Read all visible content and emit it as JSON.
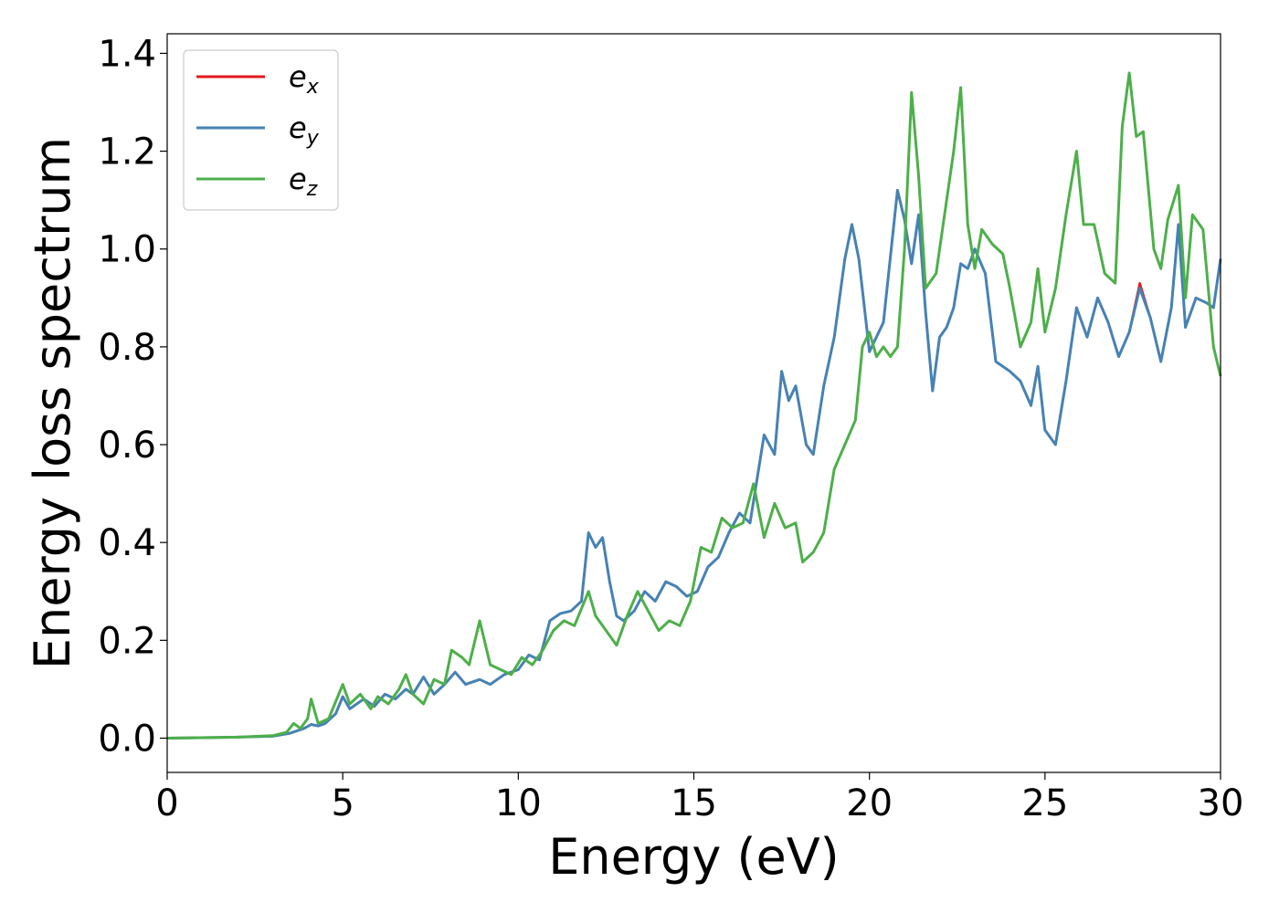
{
  "chart_data": {
    "type": "line",
    "title": "",
    "xlabel": "Energy (eV)",
    "ylabel": "Energy loss spectrum",
    "xlim": [
      0,
      30
    ],
    "ylim": [
      -0.07,
      1.44
    ],
    "xticks": [
      0,
      5,
      10,
      15,
      20,
      25,
      30
    ],
    "yticks": [
      0.0,
      0.2,
      0.4,
      0.6,
      0.8,
      1.0,
      1.2,
      1.4
    ],
    "xtick_labels": [
      "0",
      "5",
      "10",
      "15",
      "20",
      "25",
      "30"
    ],
    "ytick_labels": [
      "0.0",
      "0.2",
      "0.4",
      "0.6",
      "0.8",
      "1.0",
      "1.2",
      "1.4"
    ],
    "grid": false,
    "legend_position": "top-left",
    "series": [
      {
        "name": "e",
        "subscript": "x",
        "color": "#e41a1c",
        "width": 2.5,
        "x": [
          0,
          2,
          3,
          3.5,
          3.9,
          4.1,
          4.3,
          4.5,
          4.8,
          5.0,
          5.2,
          5.4,
          5.6,
          5.9,
          6.2,
          6.5,
          6.8,
          7.0,
          7.3,
          7.6,
          7.9,
          8.2,
          8.5,
          8.9,
          9.2,
          9.6,
          10.0,
          10.3,
          10.6,
          10.9,
          11.2,
          11.5,
          11.8,
          12.0,
          12.2,
          12.4,
          12.6,
          12.8,
          13.0,
          13.3,
          13.6,
          13.9,
          14.2,
          14.5,
          14.8,
          15.1,
          15.4,
          15.7,
          16.0,
          16.3,
          16.6,
          17.0,
          17.3,
          17.5,
          17.7,
          17.9,
          18.2,
          18.4,
          18.7,
          19.0,
          19.3,
          19.5,
          19.7,
          20.0,
          20.4,
          20.8,
          21.0,
          21.2,
          21.4,
          21.6,
          21.8,
          22.0,
          22.2,
          22.4,
          22.6,
          22.8,
          23.0,
          23.3,
          23.6,
          24.0,
          24.3,
          24.6,
          24.8,
          25.0,
          25.3,
          25.6,
          25.9,
          26.2,
          26.5,
          26.8,
          27.1,
          27.4,
          27.7,
          28.0,
          28.3,
          28.6,
          28.8,
          29.0,
          29.3,
          29.6,
          29.8,
          30.0
        ],
        "y": [
          0.0,
          0.002,
          0.004,
          0.01,
          0.02,
          0.028,
          0.025,
          0.03,
          0.05,
          0.085,
          0.06,
          0.07,
          0.08,
          0.065,
          0.09,
          0.08,
          0.1,
          0.09,
          0.125,
          0.09,
          0.11,
          0.135,
          0.11,
          0.12,
          0.11,
          0.13,
          0.14,
          0.17,
          0.16,
          0.24,
          0.255,
          0.26,
          0.28,
          0.42,
          0.39,
          0.41,
          0.32,
          0.25,
          0.24,
          0.26,
          0.3,
          0.28,
          0.32,
          0.31,
          0.29,
          0.3,
          0.35,
          0.37,
          0.42,
          0.46,
          0.44,
          0.62,
          0.58,
          0.75,
          0.69,
          0.72,
          0.6,
          0.58,
          0.72,
          0.82,
          0.98,
          1.05,
          0.98,
          0.79,
          0.85,
          1.12,
          1.06,
          0.97,
          1.07,
          0.87,
          0.71,
          0.82,
          0.84,
          0.88,
          0.97,
          0.96,
          1.0,
          0.95,
          0.77,
          0.75,
          0.73,
          0.68,
          0.76,
          0.63,
          0.6,
          0.73,
          0.88,
          0.82,
          0.9,
          0.85,
          0.78,
          0.83,
          0.93,
          0.86,
          0.77,
          0.88,
          1.05,
          0.84,
          0.9,
          0.89,
          0.88,
          0.98
        ]
      },
      {
        "name": "e",
        "subscript": "y",
        "color": "#4682b4",
        "width": 3,
        "x": [
          0,
          2,
          3,
          3.5,
          3.9,
          4.1,
          4.3,
          4.5,
          4.8,
          5.0,
          5.2,
          5.4,
          5.6,
          5.9,
          6.2,
          6.5,
          6.8,
          7.0,
          7.3,
          7.6,
          7.9,
          8.2,
          8.5,
          8.9,
          9.2,
          9.6,
          10.0,
          10.3,
          10.6,
          10.9,
          11.2,
          11.5,
          11.8,
          12.0,
          12.2,
          12.4,
          12.6,
          12.8,
          13.0,
          13.3,
          13.6,
          13.9,
          14.2,
          14.5,
          14.8,
          15.1,
          15.4,
          15.7,
          16.0,
          16.3,
          16.6,
          17.0,
          17.3,
          17.5,
          17.7,
          17.9,
          18.2,
          18.4,
          18.7,
          19.0,
          19.3,
          19.5,
          19.7,
          20.0,
          20.4,
          20.8,
          21.0,
          21.2,
          21.4,
          21.6,
          21.8,
          22.0,
          22.2,
          22.4,
          22.6,
          22.8,
          23.0,
          23.3,
          23.6,
          24.0,
          24.3,
          24.6,
          24.8,
          25.0,
          25.3,
          25.6,
          25.9,
          26.2,
          26.5,
          26.8,
          27.1,
          27.4,
          27.7,
          28.0,
          28.3,
          28.6,
          28.8,
          29.0,
          29.3,
          29.6,
          29.8,
          30.0
        ],
        "y": [
          0.0,
          0.002,
          0.004,
          0.01,
          0.02,
          0.028,
          0.025,
          0.03,
          0.05,
          0.085,
          0.06,
          0.07,
          0.08,
          0.065,
          0.09,
          0.08,
          0.1,
          0.09,
          0.125,
          0.09,
          0.11,
          0.135,
          0.11,
          0.12,
          0.11,
          0.13,
          0.14,
          0.17,
          0.16,
          0.24,
          0.255,
          0.26,
          0.28,
          0.42,
          0.39,
          0.41,
          0.32,
          0.25,
          0.24,
          0.26,
          0.3,
          0.28,
          0.32,
          0.31,
          0.29,
          0.3,
          0.35,
          0.37,
          0.42,
          0.46,
          0.44,
          0.62,
          0.58,
          0.75,
          0.69,
          0.72,
          0.6,
          0.58,
          0.72,
          0.82,
          0.98,
          1.05,
          0.98,
          0.79,
          0.85,
          1.12,
          1.06,
          0.97,
          1.07,
          0.87,
          0.71,
          0.82,
          0.84,
          0.88,
          0.97,
          0.96,
          1.0,
          0.95,
          0.77,
          0.75,
          0.73,
          0.68,
          0.76,
          0.63,
          0.6,
          0.73,
          0.88,
          0.82,
          0.9,
          0.85,
          0.78,
          0.83,
          0.92,
          0.86,
          0.77,
          0.88,
          1.05,
          0.84,
          0.9,
          0.89,
          0.88,
          0.98
        ]
      },
      {
        "name": "e",
        "subscript": "z",
        "color": "#4daf4a",
        "width": 3,
        "x": [
          0,
          2,
          3,
          3.4,
          3.6,
          3.8,
          4.0,
          4.1,
          4.3,
          4.6,
          5.0,
          5.2,
          5.5,
          5.8,
          6.0,
          6.3,
          6.6,
          6.8,
          7.0,
          7.3,
          7.6,
          7.9,
          8.1,
          8.4,
          8.6,
          8.9,
          9.2,
          9.5,
          9.8,
          10.1,
          10.4,
          10.7,
          11.0,
          11.3,
          11.6,
          12.0,
          12.2,
          12.5,
          12.8,
          13.1,
          13.4,
          13.7,
          14.0,
          14.3,
          14.6,
          14.9,
          15.2,
          15.5,
          15.8,
          16.1,
          16.4,
          16.7,
          17.0,
          17.3,
          17.6,
          17.9,
          18.1,
          18.4,
          18.7,
          19.0,
          19.3,
          19.6,
          19.8,
          20.0,
          20.2,
          20.4,
          20.6,
          20.8,
          21.0,
          21.2,
          21.4,
          21.6,
          21.9,
          22.2,
          22.4,
          22.6,
          22.8,
          23.0,
          23.2,
          23.5,
          23.8,
          24.0,
          24.3,
          24.6,
          24.8,
          25.0,
          25.3,
          25.6,
          25.9,
          26.1,
          26.4,
          26.7,
          27.0,
          27.2,
          27.4,
          27.6,
          27.8,
          28.1,
          28.3,
          28.5,
          28.8,
          29.0,
          29.2,
          29.5,
          29.8,
          30.0
        ],
        "y": [
          0.0,
          0.002,
          0.005,
          0.012,
          0.03,
          0.02,
          0.04,
          0.08,
          0.03,
          0.04,
          0.11,
          0.07,
          0.09,
          0.06,
          0.085,
          0.07,
          0.1,
          0.13,
          0.09,
          0.07,
          0.12,
          0.11,
          0.18,
          0.165,
          0.15,
          0.24,
          0.15,
          0.14,
          0.13,
          0.165,
          0.15,
          0.18,
          0.22,
          0.24,
          0.23,
          0.3,
          0.25,
          0.22,
          0.19,
          0.25,
          0.3,
          0.26,
          0.22,
          0.24,
          0.23,
          0.28,
          0.39,
          0.38,
          0.45,
          0.43,
          0.44,
          0.52,
          0.41,
          0.48,
          0.43,
          0.44,
          0.36,
          0.38,
          0.42,
          0.55,
          0.6,
          0.65,
          0.8,
          0.83,
          0.78,
          0.8,
          0.78,
          0.8,
          1.0,
          1.32,
          1.15,
          0.92,
          0.95,
          1.1,
          1.2,
          1.33,
          1.05,
          0.96,
          1.04,
          1.01,
          0.99,
          0.92,
          0.8,
          0.85,
          0.96,
          0.83,
          0.92,
          1.07,
          1.2,
          1.05,
          1.05,
          0.95,
          0.93,
          1.25,
          1.36,
          1.23,
          1.24,
          1.0,
          0.96,
          1.06,
          1.13,
          0.9,
          1.07,
          1.04,
          0.8,
          0.74
        ]
      }
    ]
  }
}
